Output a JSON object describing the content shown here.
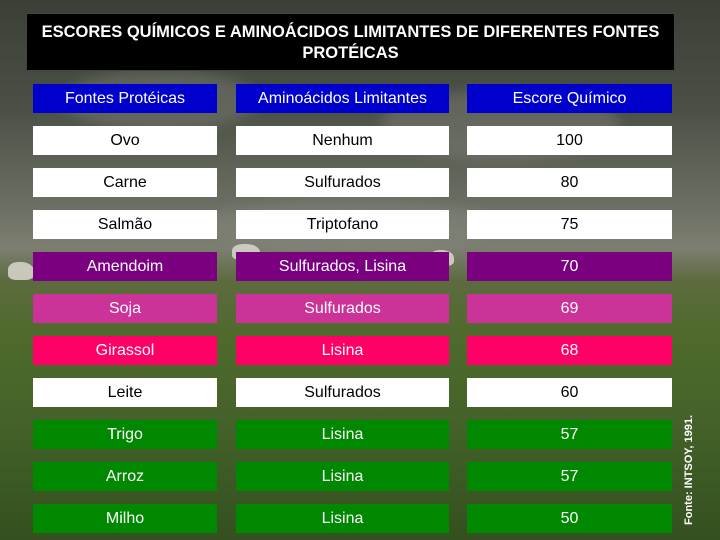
{
  "title": "ESCORES QUÍMICOS E AMINOÁCIDOS LIMITANTES DE DIFERENTES FONTES PROTÉICAS",
  "source": "Fonte: INTSOY, 1991.",
  "colors": {
    "header_bg": "#0000CC",
    "white": "#FFFFFF",
    "purple": "#7A0080",
    "magenta": "#CC3399",
    "pink": "#FF0066",
    "green": "#008800"
  },
  "headers": [
    "Fontes Protéicas",
    "Aminoácidos Limitantes",
    "Escore Químico"
  ],
  "rows": [
    {
      "fonte": "Ovo",
      "aminoacido": "Nenhum",
      "escore": "100",
      "color": "white"
    },
    {
      "fonte": "Carne",
      "aminoacido": "Sulfurados",
      "escore": "80",
      "color": "white"
    },
    {
      "fonte": "Salmão",
      "aminoacido": "Triptofano",
      "escore": "75",
      "color": "white"
    },
    {
      "fonte": "Amendoim",
      "aminoacido": "Sulfurados, Lisina",
      "escore": "70",
      "color": "purple"
    },
    {
      "fonte": "Soja",
      "aminoacido": "Sulfurados",
      "escore": "69",
      "color": "magenta"
    },
    {
      "fonte": "Girassol",
      "aminoacido": "Lisina",
      "escore": "68",
      "color": "pink"
    },
    {
      "fonte": "Leite",
      "aminoacido": "Sulfurados",
      "escore": "60",
      "color": "white"
    },
    {
      "fonte": "Trigo",
      "aminoacido": "Lisina",
      "escore": "57",
      "color": "green"
    },
    {
      "fonte": "Arroz",
      "aminoacido": "Lisina",
      "escore": "57",
      "color": "green"
    },
    {
      "fonte": "Milho",
      "aminoacido": "Lisina",
      "escore": "50",
      "color": "green"
    }
  ]
}
